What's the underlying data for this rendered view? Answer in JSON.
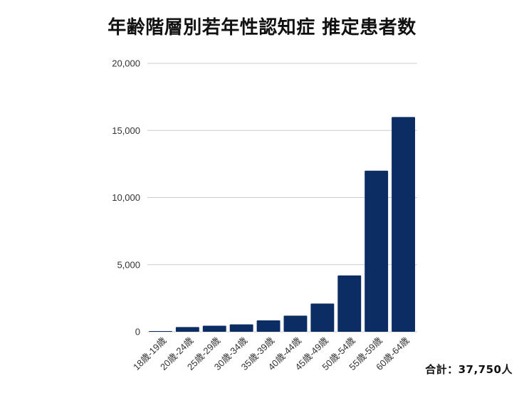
{
  "colors": {
    "bar": "#0c2c64",
    "grid": "#cccccc",
    "text": "#333333"
  },
  "chart_data": {
    "type": "bar",
    "title": "年齢階層別若年性認知症 推定患者数",
    "categories": [
      "18歳-19歳",
      "20歳-24歳",
      "25歳-29歳",
      "30歳-34歳",
      "35歳-39歳",
      "40歳-44歳",
      "45歳-49歳",
      "50歳-54歳",
      "55歳-59歳",
      "60歳-64歳"
    ],
    "values": [
      50,
      350,
      450,
      550,
      850,
      1200,
      2100,
      4200,
      12000,
      16000
    ],
    "ylim": [
      0,
      20000
    ],
    "yticks": [
      0,
      5000,
      10000,
      15000,
      20000
    ],
    "ytick_labels": [
      "0",
      "5,000",
      "10,000",
      "15,000",
      "20,000"
    ],
    "grid": true,
    "legend": false,
    "annotation": "合計：37,750人"
  }
}
